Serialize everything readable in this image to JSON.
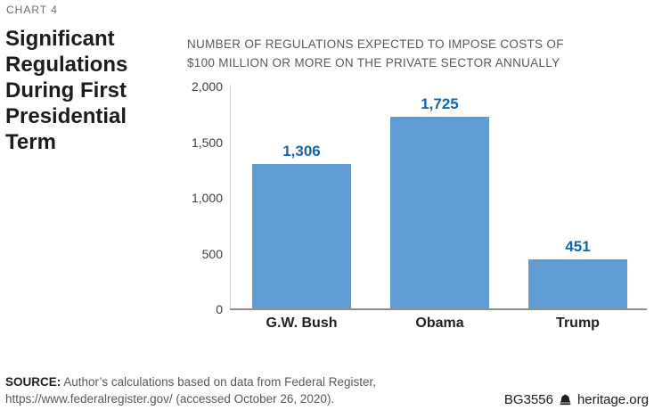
{
  "page": {
    "chart_label": "CHART 4",
    "title_lines": [
      "Significant",
      "Regulations",
      "During First",
      "Presidential",
      "Term"
    ]
  },
  "subtitle": {
    "line1": "NUMBER OF REGULATIONS EXPECTED TO IMPOSE COSTS OF",
    "line2": "$100 MILLION OR MORE ON THE PRIVATE SECTOR ANNUALLY"
  },
  "chart_data": {
    "type": "bar",
    "title": "Significant Regulations During First Presidential Term",
    "subtitle": "NUMBER OF REGULATIONS EXPECTED TO IMPOSE COSTS OF $100 MILLION OR MORE ON THE PRIVATE SECTOR ANNUALLY",
    "categories": [
      "G.W. Bush",
      "Obama",
      "Trump"
    ],
    "values": [
      1306,
      1725,
      451
    ],
    "value_labels": [
      "1,306",
      "1,725",
      "451"
    ],
    "xlabel": "",
    "ylabel": "",
    "ylim": [
      0,
      2000
    ],
    "yticks": [
      {
        "value": 0,
        "label": "0"
      },
      {
        "value": 500,
        "label": "500"
      },
      {
        "value": 1000,
        "label": "1,000"
      },
      {
        "value": 1500,
        "label": "1,500"
      },
      {
        "value": 2000,
        "label": "2,000"
      }
    ],
    "grid": false,
    "legend": false,
    "bar_color": "#5f9dd4",
    "value_label_color": "#1068b2"
  },
  "source": {
    "label": "SOURCE:",
    "line1": "Author’s calculations based on data from Federal Register,",
    "line2": "https://www.federalregister.gov/ (accessed October 26, 2020)."
  },
  "footer": {
    "report_id": "BG3556",
    "bell_icon": "liberty-bell",
    "site": "heritage.org"
  }
}
